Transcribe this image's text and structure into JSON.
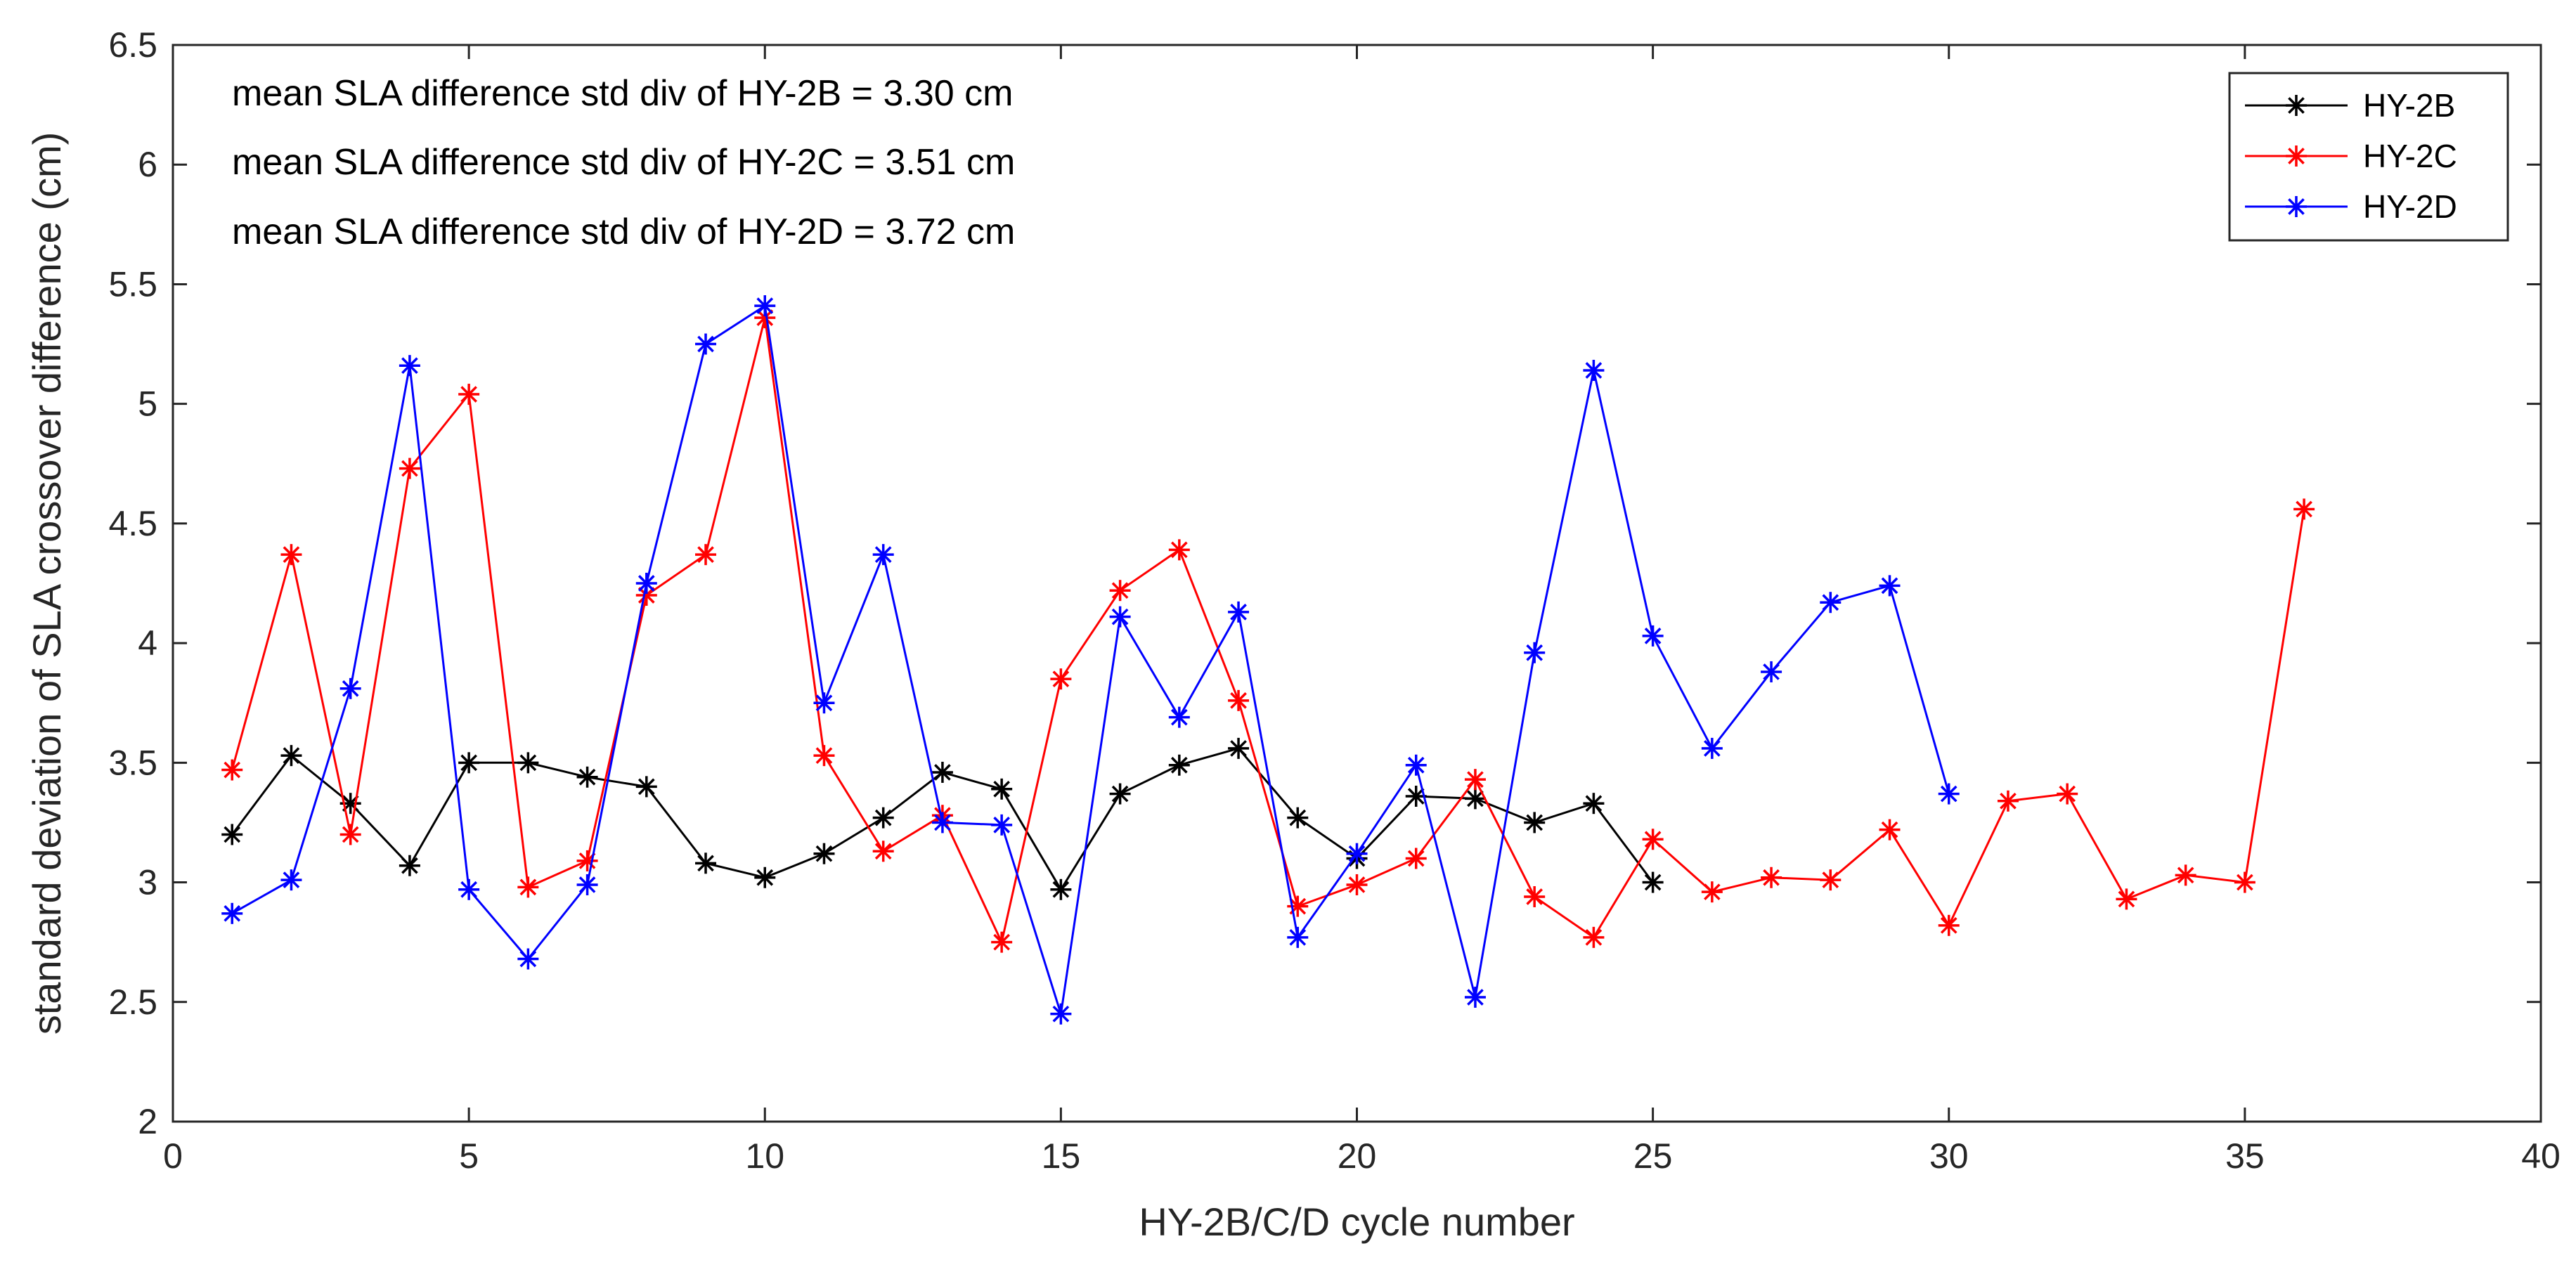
{
  "chart_data": {
    "type": "line",
    "title": "",
    "xlabel": "HY-2B/C/D cycle number",
    "ylabel": "standard deviation of SLA crossover difference (cm)",
    "xlim": [
      0,
      40
    ],
    "ylim": [
      2,
      6.5
    ],
    "x_ticks": [
      0,
      5,
      10,
      15,
      20,
      25,
      30,
      35,
      40
    ],
    "x_tick_labels": [
      "0",
      "5",
      "10",
      "15",
      "20",
      "25",
      "30",
      "35",
      "40"
    ],
    "y_ticks": [
      2,
      2.5,
      3,
      3.5,
      4,
      4.5,
      5,
      5.5,
      6,
      6.5
    ],
    "y_tick_labels": [
      "2",
      "2.5",
      "3",
      "3.5",
      "4",
      "4.5",
      "5",
      "5.5",
      "6",
      "6.5"
    ],
    "grid": false,
    "legend_position": "top-right",
    "annotations": [
      "mean SLA difference std div of HY-2B = 3.30 cm",
      "mean SLA difference std div of HY-2C = 3.51 cm",
      "mean SLA difference std div of HY-2D = 3.72 cm"
    ],
    "series": [
      {
        "name": "HY-2B",
        "color": "#000000",
        "marker": "asterisk",
        "x": [
          1,
          2,
          3,
          4,
          5,
          6,
          7,
          8,
          9,
          10,
          11,
          12,
          13,
          14,
          15,
          16,
          17,
          18,
          19,
          20,
          21,
          22,
          23,
          24,
          25
        ],
        "values": [
          3.2,
          3.53,
          3.33,
          3.07,
          3.5,
          3.5,
          3.44,
          3.4,
          3.08,
          3.02,
          3.12,
          3.27,
          3.46,
          3.39,
          2.97,
          3.37,
          3.49,
          3.56,
          3.27,
          3.1,
          3.36,
          3.35,
          3.25,
          3.33,
          3.0
        ]
      },
      {
        "name": "HY-2C",
        "color": "#ff0000",
        "marker": "asterisk",
        "x": [
          1,
          2,
          3,
          4,
          5,
          6,
          7,
          8,
          9,
          10,
          11,
          12,
          13,
          14,
          15,
          16,
          17,
          18,
          19,
          20,
          21,
          22,
          23,
          24,
          25,
          26,
          27,
          28,
          29,
          30,
          31,
          32,
          33,
          34,
          35,
          36
        ],
        "values": [
          3.47,
          4.37,
          3.2,
          4.73,
          5.04,
          2.98,
          3.09,
          4.2,
          4.37,
          5.36,
          3.53,
          3.13,
          3.28,
          2.75,
          3.85,
          4.22,
          4.39,
          3.76,
          2.9,
          2.99,
          3.1,
          3.43,
          2.94,
          2.77,
          3.18,
          2.96,
          3.02,
          3.01,
          3.22,
          2.82,
          3.34,
          3.37,
          2.93,
          3.03,
          3.0,
          4.56
        ]
      },
      {
        "name": "HY-2D",
        "color": "#0000ff",
        "marker": "asterisk",
        "x": [
          1,
          2,
          3,
          4,
          5,
          6,
          7,
          8,
          9,
          10,
          11,
          12,
          13,
          14,
          15,
          16,
          17,
          18,
          19,
          20,
          21,
          22,
          23,
          24,
          25,
          26,
          27,
          28,
          29,
          30
        ],
        "values": [
          2.87,
          3.01,
          3.81,
          5.16,
          2.97,
          2.68,
          2.99,
          4.25,
          5.25,
          5.41,
          3.75,
          4.37,
          3.25,
          3.24,
          2.45,
          4.11,
          3.69,
          4.13,
          2.77,
          3.12,
          3.49,
          2.52,
          3.96,
          5.14,
          4.03,
          3.56,
          3.88,
          4.17,
          4.24,
          3.37
        ]
      }
    ]
  }
}
